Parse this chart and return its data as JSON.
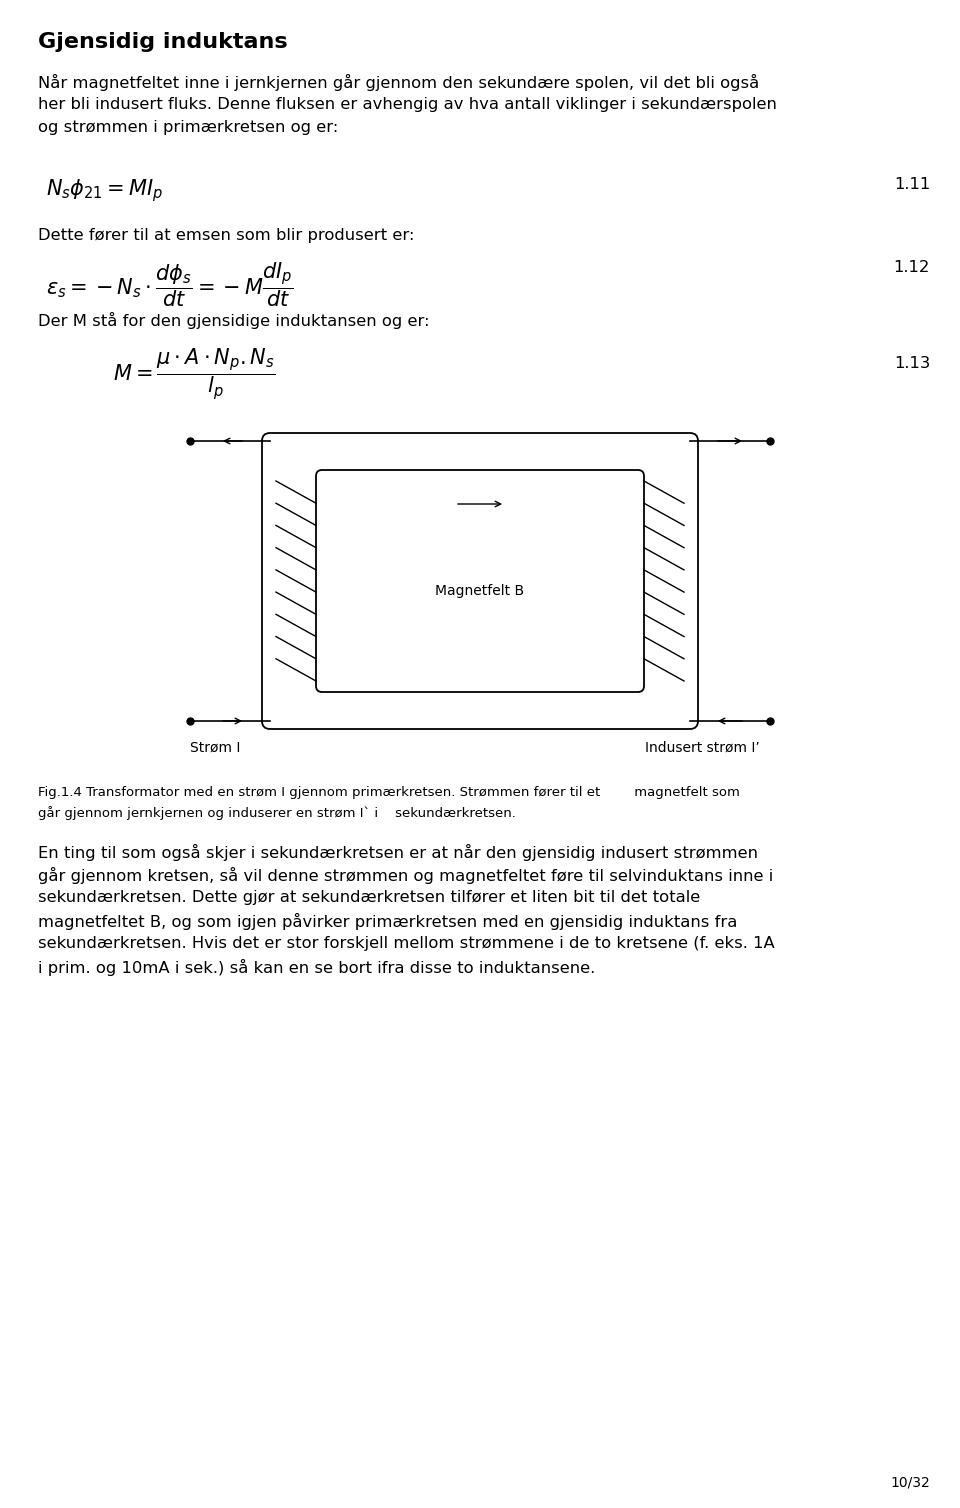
{
  "title": "Gjensidig induktans",
  "para1_lines": [
    "Når magnetfeltet inne i jernkjernen går gjennom den sekundære spolen, vil det bli også",
    "her bli indusert fluks. Denne fluksen er avhengig av hva antall viklinger i sekundærspolen",
    "og strømmen i primærkretsen og er:"
  ],
  "eq1_label": "1.11",
  "eq1": "$N_s\\phi_{21} = MI_p$",
  "para2": "Dette fører til at emsen som blir produsert er:",
  "eq2_label": "1.12",
  "eq2": "$\\varepsilon_s = -N_s \\cdot \\dfrac{d\\phi_s}{dt} = -M\\dfrac{dI_p}{dt}$",
  "para3": "Der M stå for den gjensidige induktansen og er:",
  "eq3_label": "1.13",
  "eq3": "$M = \\dfrac{\\mu \\cdot A \\cdot N_p.N_s}{l_p}$",
  "fig_caption_line1": "Fig.1.4 Transformator med en strøm I gjennom primærkretsen. Strømmen fører til et        magnetfelt som",
  "fig_caption_line2": "går gjennom jernkjernen og induserer en strøm I` i    sekundærkretsen.",
  "para4_lines": [
    "En ting til som også skjer i sekundærkretsen er at når den gjensidig indusert strømmen",
    "går gjennom kretsen, så vil denne strømmen og magnetfeltet føre til selvinduktans inne i",
    "sekundærkretsen. Dette gjør at sekundærkretsen tilfører et liten bit til det totale",
    "magnetfeltet B, og som igjen påvirker primærkretsen med en gjensidig induktans fra",
    "sekundærkretsen. Hvis det er stor forskjell mellom strømmene i de to kretsene (f. eks. 1A",
    "i prim. og 10mA i sek.) så kan en se bort ifra disse to induktansene."
  ],
  "page_num": "10/32",
  "bg_color": "#ffffff",
  "text_color": "#000000",
  "label_strom": "Strøm I",
  "label_indusert": "Indusert strøm Iʼ",
  "label_magnetfelt": "Magnetfelt B"
}
